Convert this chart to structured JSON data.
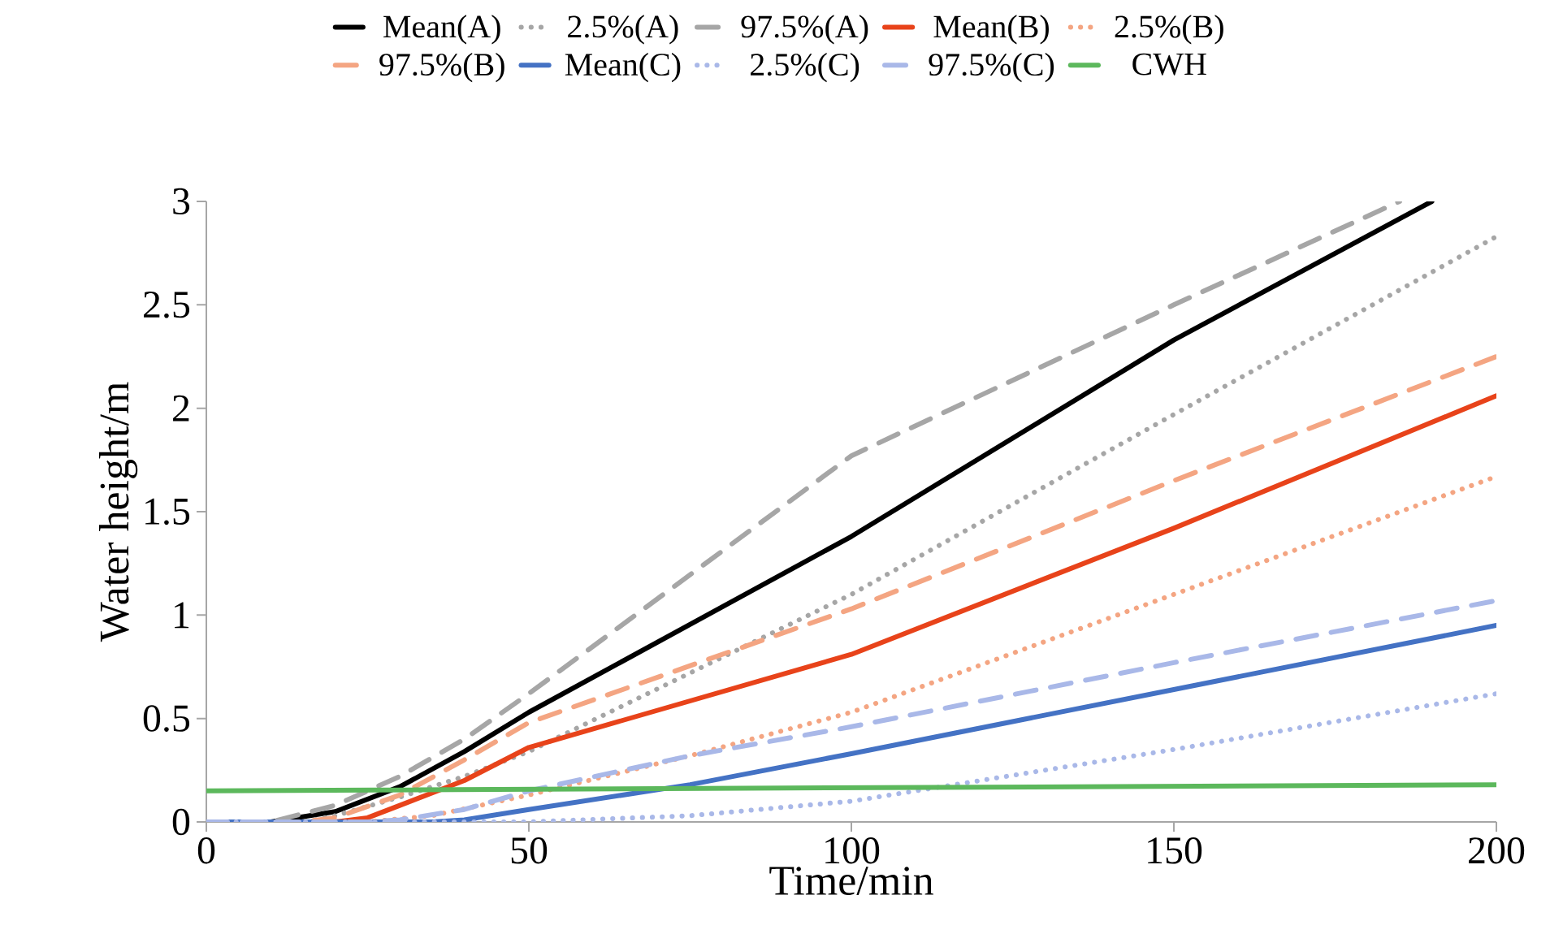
{
  "chart_data": {
    "type": "line",
    "xlabel": "Time/min",
    "ylabel": "Water height/m",
    "xlim": [
      0,
      200
    ],
    "ylim": [
      0,
      3
    ],
    "xticks": [
      0,
      50,
      100,
      150,
      200
    ],
    "yticks": [
      0,
      0.5,
      1,
      1.5,
      2,
      2.5,
      3
    ],
    "grid": false,
    "legend": "top",
    "marker": "none",
    "series": [
      {
        "name": "Mean(A)",
        "color": "#000000",
        "line_style": "solid",
        "x": [
          0,
          10,
          20,
          30,
          40,
          50,
          100,
          150,
          190
        ],
        "values": [
          0,
          0,
          0.05,
          0.17,
          0.34,
          0.53,
          1.38,
          2.33,
          3.0
        ]
      },
      {
        "name": "2.5%(A)",
        "color": "#a6a6a6",
        "line_style": "dotted",
        "x": [
          0,
          15,
          20,
          30,
          40,
          50,
          100,
          150,
          200
        ],
        "values": [
          0,
          0,
          0.03,
          0.12,
          0.22,
          0.34,
          1.1,
          1.97,
          2.83
        ]
      },
      {
        "name": "97.5%(A)",
        "color": "#a6a6a6",
        "line_style": "dashed",
        "x": [
          0,
          10,
          20,
          30,
          40,
          50,
          100,
          150,
          185
        ],
        "values": [
          0,
          0,
          0.08,
          0.22,
          0.4,
          0.62,
          1.77,
          2.5,
          3.0
        ]
      },
      {
        "name": "Mean(B)",
        "color": "#e8431a",
        "line_style": "solid",
        "x": [
          0,
          20,
          25,
          30,
          40,
          50,
          100,
          150,
          200
        ],
        "values": [
          0,
          0,
          0.02,
          0.08,
          0.2,
          0.36,
          0.81,
          1.42,
          2.06
        ]
      },
      {
        "name": "2.5%(B)",
        "color": "#f4a582",
        "line_style": "dotted",
        "x": [
          0,
          25,
          35,
          50,
          75,
          100,
          150,
          200
        ],
        "values": [
          0,
          0,
          0.03,
          0.13,
          0.32,
          0.53,
          1.1,
          1.67
        ]
      },
      {
        "name": "97.5%(B)",
        "color": "#f4a582",
        "line_style": "dashed",
        "x": [
          0,
          15,
          20,
          30,
          40,
          50,
          100,
          150,
          200
        ],
        "values": [
          0,
          0,
          0.02,
          0.13,
          0.3,
          0.48,
          1.03,
          1.65,
          2.25
        ]
      },
      {
        "name": "Mean(C)",
        "color": "#4472c4",
        "line_style": "solid",
        "x": [
          0,
          35,
          40,
          50,
          75,
          100,
          150,
          200
        ],
        "values": [
          0,
          0,
          0.01,
          0.06,
          0.18,
          0.33,
          0.64,
          0.95
        ]
      },
      {
        "name": "2.5%(C)",
        "color": "#a9b8e8",
        "line_style": "dotted",
        "x": [
          0,
          50,
          75,
          100,
          150,
          200
        ],
        "values": [
          0,
          0,
          0.03,
          0.1,
          0.35,
          0.62
        ]
      },
      {
        "name": "97.5%(C)",
        "color": "#a9b8e8",
        "line_style": "dashed",
        "x": [
          0,
          25,
          30,
          40,
          50,
          75,
          100,
          150,
          200
        ],
        "values": [
          0,
          0,
          0.01,
          0.06,
          0.15,
          0.32,
          0.46,
          0.77,
          1.07
        ]
      },
      {
        "name": "CWH",
        "color": "#5cb85c",
        "line_style": "solid",
        "x": [
          0,
          200
        ],
        "values": [
          0.15,
          0.18
        ]
      }
    ]
  }
}
